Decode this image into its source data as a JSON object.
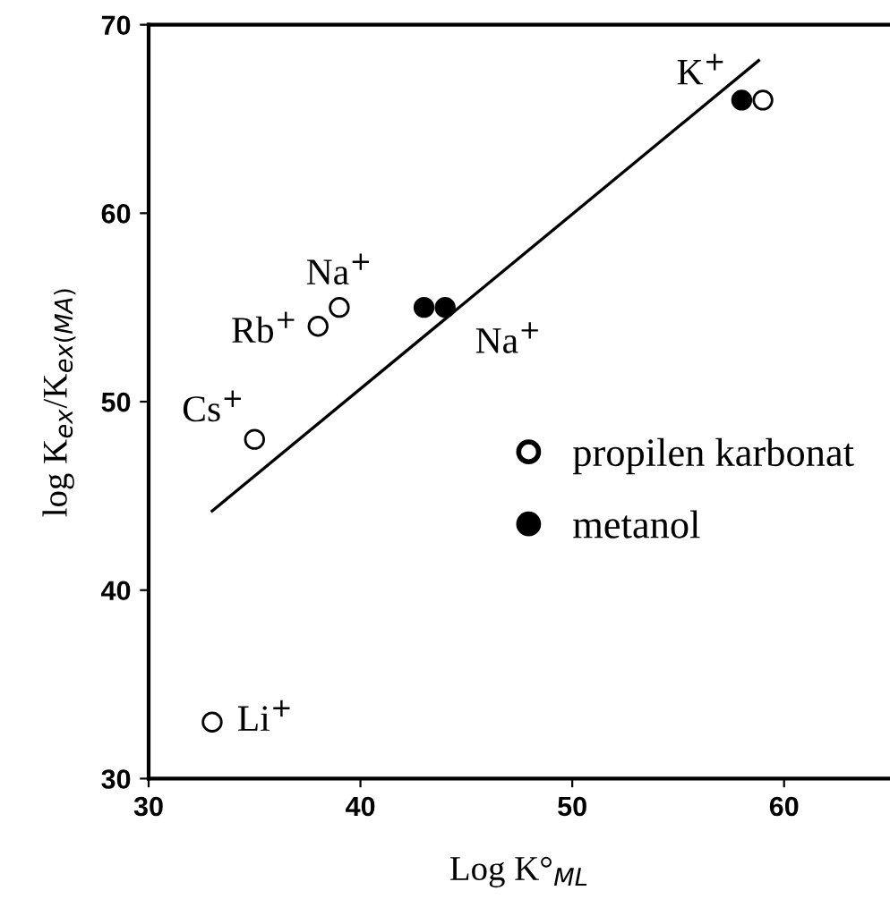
{
  "chart_data": {
    "type": "scatter",
    "xlabel": "Log K°$_{ML}$",
    "ylabel": "log K$_{ex}$/K$_{ex(MA)}$",
    "xlim": [
      30,
      65
    ],
    "ylim": [
      30,
      70
    ],
    "xticks": [
      30,
      40,
      50,
      60
    ],
    "yticks": [
      30,
      40,
      50,
      60,
      70
    ],
    "grid": false,
    "legend": "right",
    "marker": "circle",
    "series": [
      {
        "name": "propilen karbonat",
        "color": "#ffffff",
        "x": [
          33,
          35,
          38,
          39,
          59
        ],
        "values": [
          33,
          48,
          54,
          55,
          66
        ]
      },
      {
        "name": "metanol",
        "color": "#000000",
        "x": [
          43,
          44,
          58
        ],
        "values": [
          55,
          55,
          66
        ]
      },
      {
        "type": "line",
        "color": "#000000",
        "x": [
          33,
          58.8
        ],
        "values": [
          44.2,
          68.1
        ],
        "marker": "none",
        "line_style": "solid"
      }
    ],
    "annotations": [
      {
        "text": "Li$^{+}$",
        "x": 33,
        "y": 33
      },
      {
        "text": "Cs$^{+}$",
        "x": 35,
        "y": 48
      },
      {
        "text": "Rb$^{+}$",
        "x": 38,
        "y": 54
      },
      {
        "text": "Na$^{+}$",
        "x": 39,
        "y": 55
      },
      {
        "text": "Na$^{+}$",
        "x": 44,
        "y": 55
      },
      {
        "text": "K$^{+}$",
        "x": 58,
        "y": 66
      }
    ]
  }
}
